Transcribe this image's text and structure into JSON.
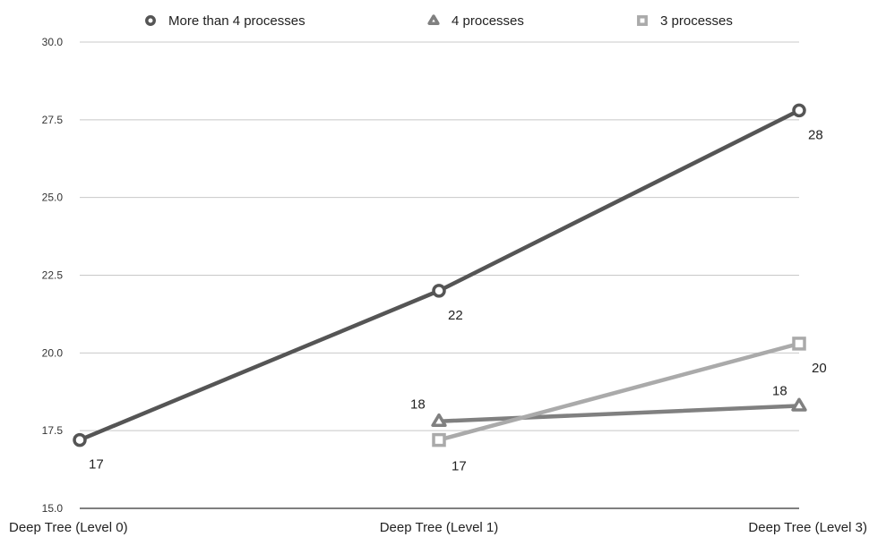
{
  "chart_data": {
    "type": "line",
    "categories": [
      "Deep Tree (Level 0)",
      "Deep Tree (Level 1)",
      "Deep Tree (Level 3)"
    ],
    "ylim": [
      15.0,
      30.0
    ],
    "yticks": [
      "15.0",
      "17.5",
      "20.0",
      "22.5",
      "25.0",
      "27.5",
      "30.0"
    ],
    "grid": true,
    "legend_position": "top",
    "series": [
      {
        "name": "More than 4 processes",
        "marker": "circle",
        "color": "#555555",
        "values": [
          17.2,
          22.0,
          27.8
        ],
        "labels": [
          "17",
          "22",
          "28"
        ]
      },
      {
        "name": "4 processes",
        "marker": "triangle",
        "color": "#808080",
        "values": [
          null,
          17.8,
          18.3
        ],
        "labels": [
          null,
          "18",
          "18"
        ]
      },
      {
        "name": "3 processes",
        "marker": "square",
        "color": "#aaaaaa",
        "values": [
          null,
          17.2,
          20.3
        ],
        "labels": [
          null,
          "17",
          "20"
        ]
      }
    ]
  }
}
